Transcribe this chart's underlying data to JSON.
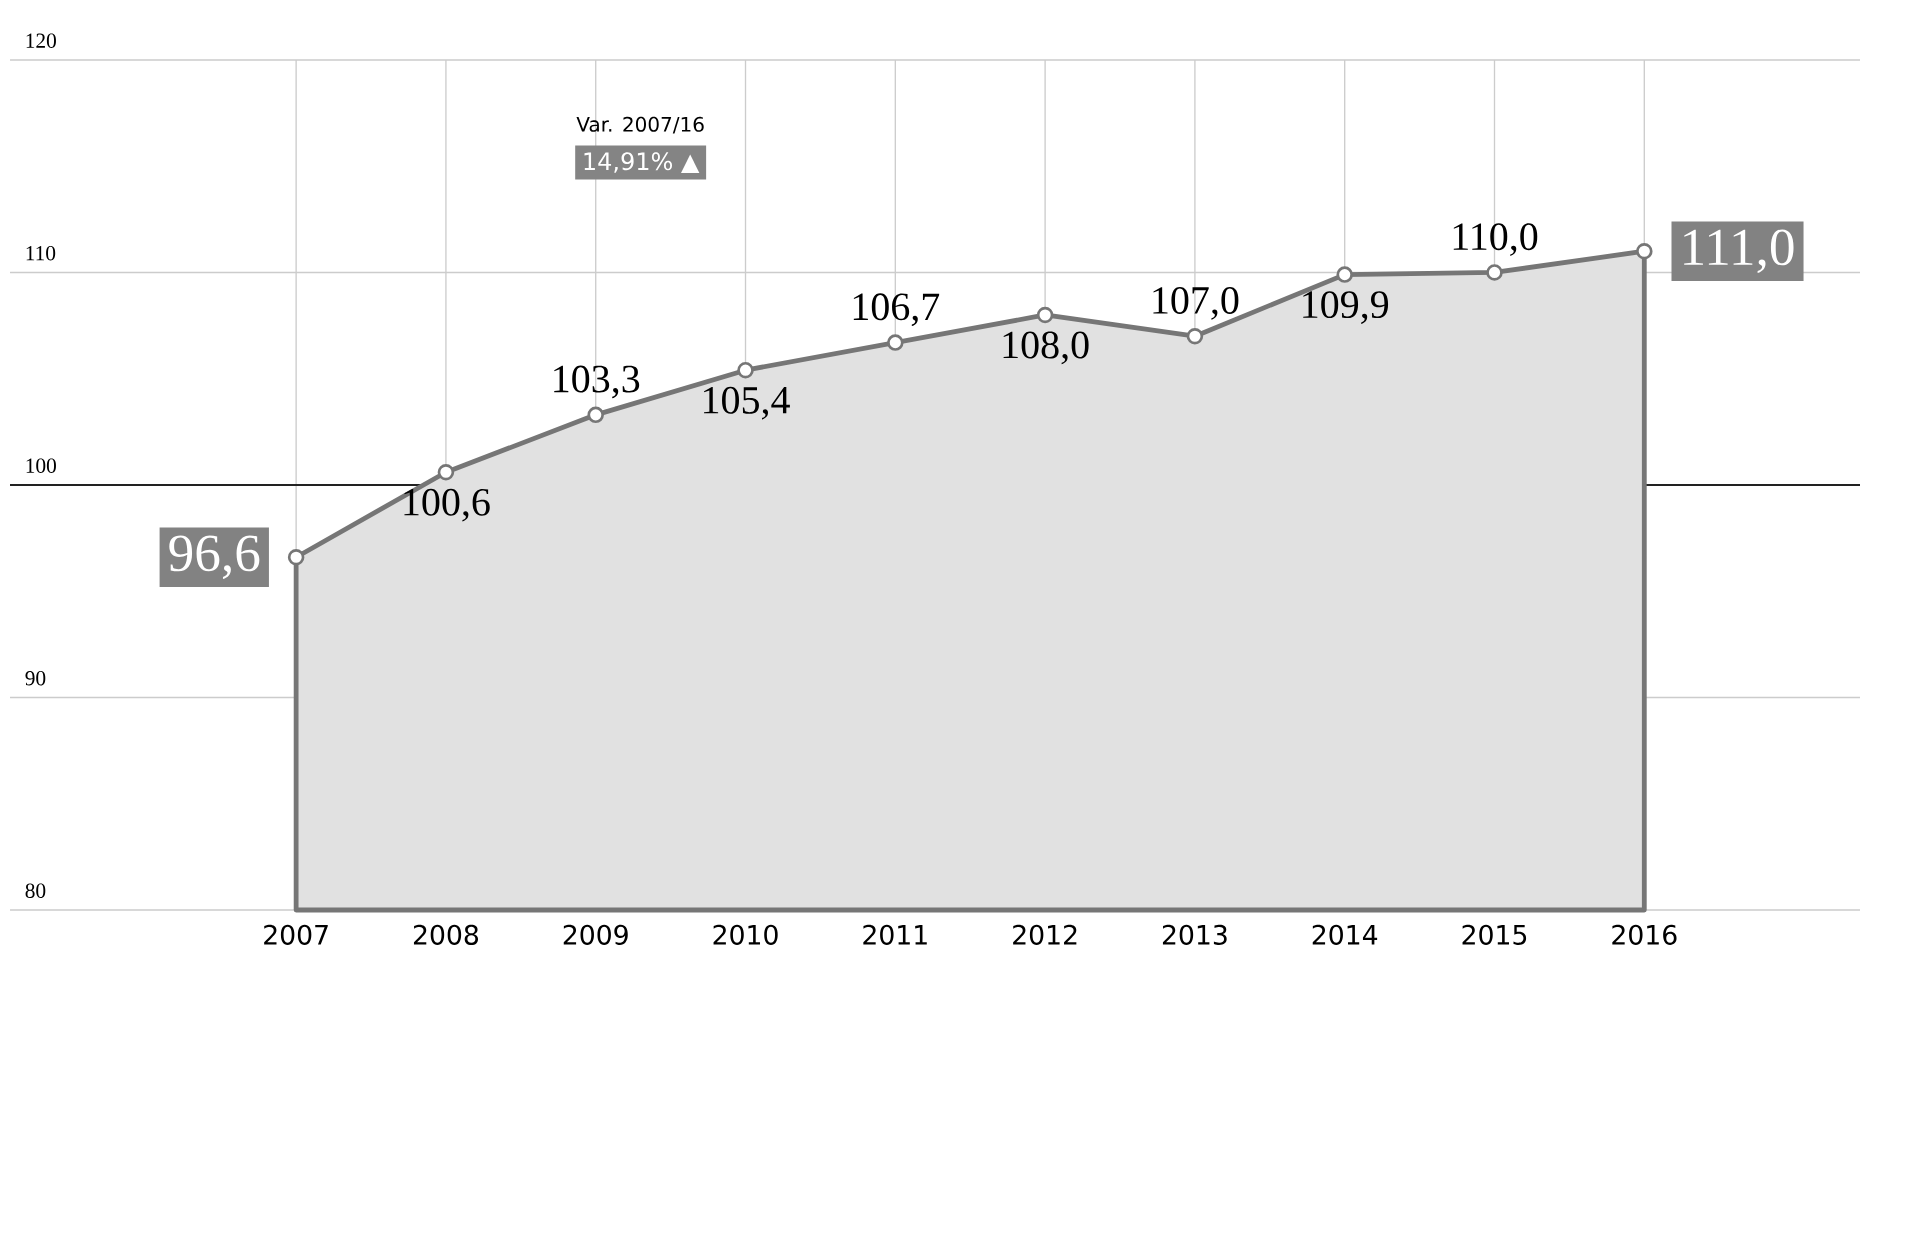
{
  "chart_data": {
    "type": "area",
    "categories": [
      "2007",
      "2008",
      "2009",
      "2010",
      "2011",
      "2012",
      "2013",
      "2014",
      "2015",
      "2016"
    ],
    "values": [
      96.6,
      100.6,
      103.3,
      105.4,
      106.7,
      108.0,
      107.0,
      109.9,
      110.0,
      111.0
    ],
    "value_labels": [
      "96,6",
      "100,6",
      "103,3",
      "105,4",
      "106,7",
      "108,0",
      "107,0",
      "109,9",
      "110,0",
      "111,0"
    ],
    "color": "#767676",
    "marker": "circle",
    "grid": true,
    "ylim": [
      80,
      120
    ],
    "yticks": [
      80,
      90,
      100,
      110,
      120
    ],
    "ref_lines": [
      {
        "axis": "y",
        "value": 100,
        "color": "#222222"
      }
    ],
    "annotations": [
      "Var. 2007/16",
      "14,91% ▲"
    ]
  }
}
